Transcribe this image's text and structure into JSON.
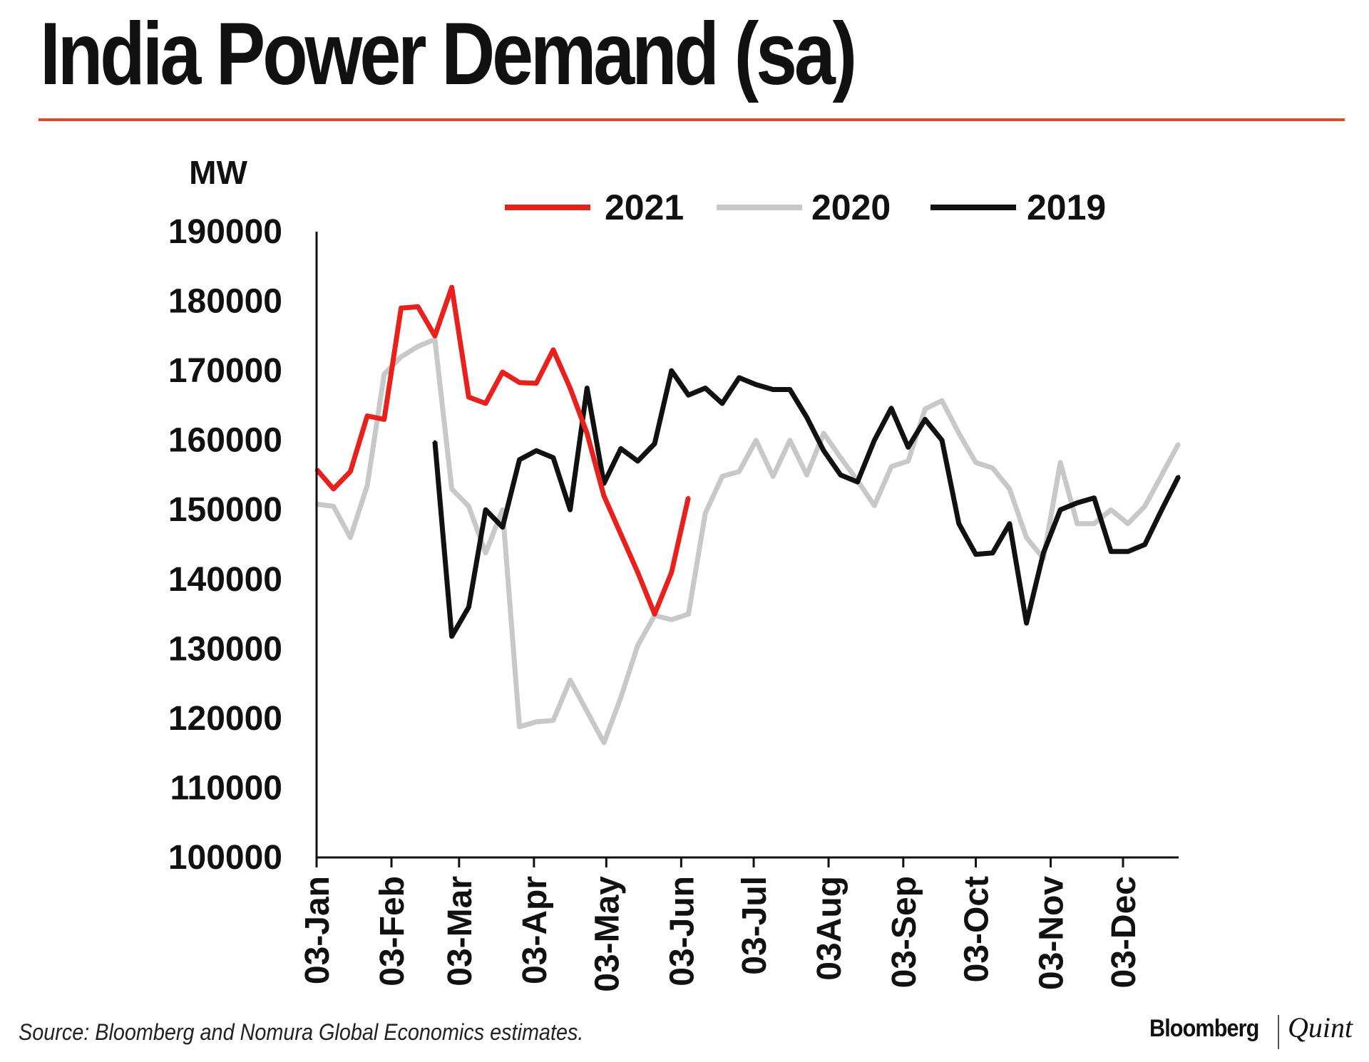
{
  "title": "India Power Demand (sa)",
  "source": "Source: Bloomberg and Nomura Global Economics estimates.",
  "brand": {
    "primary": "Bloomberg",
    "secondary": "Quint"
  },
  "colors": {
    "accent_rule": "#d2522e",
    "s2021": "#e8211c",
    "s2020": "#c8c8c8",
    "s2019": "#111111",
    "axis": "#111111"
  },
  "chart_data": {
    "type": "line",
    "title": "India Power Demand (sa)",
    "ylabel": "MW",
    "xlabel": "",
    "ylim": [
      100000,
      190000
    ],
    "yticks": [
      190000,
      180000,
      170000,
      160000,
      150000,
      140000,
      130000,
      120000,
      110000,
      100000
    ],
    "ytick_labels": [
      "190000",
      "180000",
      "170000",
      "160000",
      "150000",
      "140000",
      "130000",
      "120000",
      "110000",
      "100000"
    ],
    "xlim_weeks": [
      0,
      51
    ],
    "x_ticks": [
      {
        "label": "03-Jan",
        "week": 0
      },
      {
        "label": "03-Feb",
        "week": 4.43
      },
      {
        "label": "03-Mar",
        "week": 8.43
      },
      {
        "label": "03-Apr",
        "week": 12.86
      },
      {
        "label": "03-May",
        "week": 17.14
      },
      {
        "label": "03-Jun",
        "week": 21.57
      },
      {
        "label": "03-Jul",
        "week": 25.86
      },
      {
        "label": "03Aug",
        "week": 30.29
      },
      {
        "label": "03-Sep",
        "week": 34.71
      },
      {
        "label": "03-Oct",
        "week": 39.0
      },
      {
        "label": "03-Nov",
        "week": 43.43
      },
      {
        "label": "03-Dec",
        "week": 47.71
      }
    ],
    "legend": {
      "position": "top-center"
    },
    "series": [
      {
        "name": "2021",
        "color": "#e8211c",
        "x": [
          0,
          1,
          2,
          3,
          4,
          5,
          6,
          7,
          8,
          9,
          10,
          11,
          12,
          13,
          14,
          15,
          16,
          17,
          18,
          19,
          20,
          21,
          22
        ],
        "values": [
          155800,
          153000,
          155500,
          163500,
          163000,
          179000,
          179200,
          175000,
          182000,
          166200,
          165300,
          169800,
          168300,
          168200,
          173000,
          167500,
          161000,
          152000,
          146500,
          141000,
          135000,
          141000,
          151800
        ]
      },
      {
        "name": "2020",
        "color": "#c8c8c8",
        "x": [
          0,
          1,
          2,
          3,
          4,
          5,
          6,
          7,
          8,
          9,
          10,
          11,
          12,
          13,
          14,
          15,
          16,
          17,
          18,
          19,
          20,
          21,
          22,
          23,
          24,
          25,
          26,
          27,
          28,
          29,
          30,
          31,
          32,
          33,
          34,
          35,
          36,
          37,
          38,
          39,
          40,
          41,
          42,
          43,
          44,
          45,
          46,
          47,
          48,
          49,
          50,
          51
        ],
        "values": [
          150800,
          150500,
          146000,
          153500,
          169500,
          172000,
          173500,
          174500,
          153000,
          150500,
          143800,
          150000,
          118800,
          119500,
          119700,
          125500,
          121000,
          116500,
          123000,
          130500,
          134800,
          134200,
          135000,
          149500,
          154800,
          155500,
          160000,
          154800,
          160000,
          155000,
          161000,
          157500,
          154200,
          150600,
          156200,
          157000,
          164500,
          165700,
          161000,
          156800,
          156000,
          153000,
          146000,
          143000,
          156800,
          148000,
          148000,
          150000,
          148000,
          150500,
          155000,
          159500
        ]
      },
      {
        "name": "2019",
        "color": "#111111",
        "x": [
          7,
          8,
          9,
          10,
          11,
          12,
          13,
          14,
          15,
          16,
          17,
          18,
          19,
          20,
          21,
          22,
          23,
          24,
          25,
          26,
          27,
          28,
          29,
          30,
          31,
          32,
          33,
          34,
          35,
          36,
          37,
          38,
          39,
          40,
          41,
          42,
          43,
          44,
          45,
          46,
          47,
          48,
          49,
          50,
          51
        ],
        "values": [
          159800,
          131800,
          136000,
          150000,
          147500,
          157200,
          158500,
          157500,
          150000,
          167500,
          153800,
          158800,
          157000,
          159500,
          170000,
          166500,
          167500,
          165300,
          169000,
          168000,
          167300,
          167300,
          163300,
          158500,
          155000,
          154000,
          160000,
          164600,
          159000,
          163000,
          160000,
          148000,
          143600,
          143800,
          148000,
          133700,
          143800,
          150000,
          151000,
          151700,
          144000,
          144000,
          145000,
          150000,
          154800
        ]
      }
    ]
  }
}
